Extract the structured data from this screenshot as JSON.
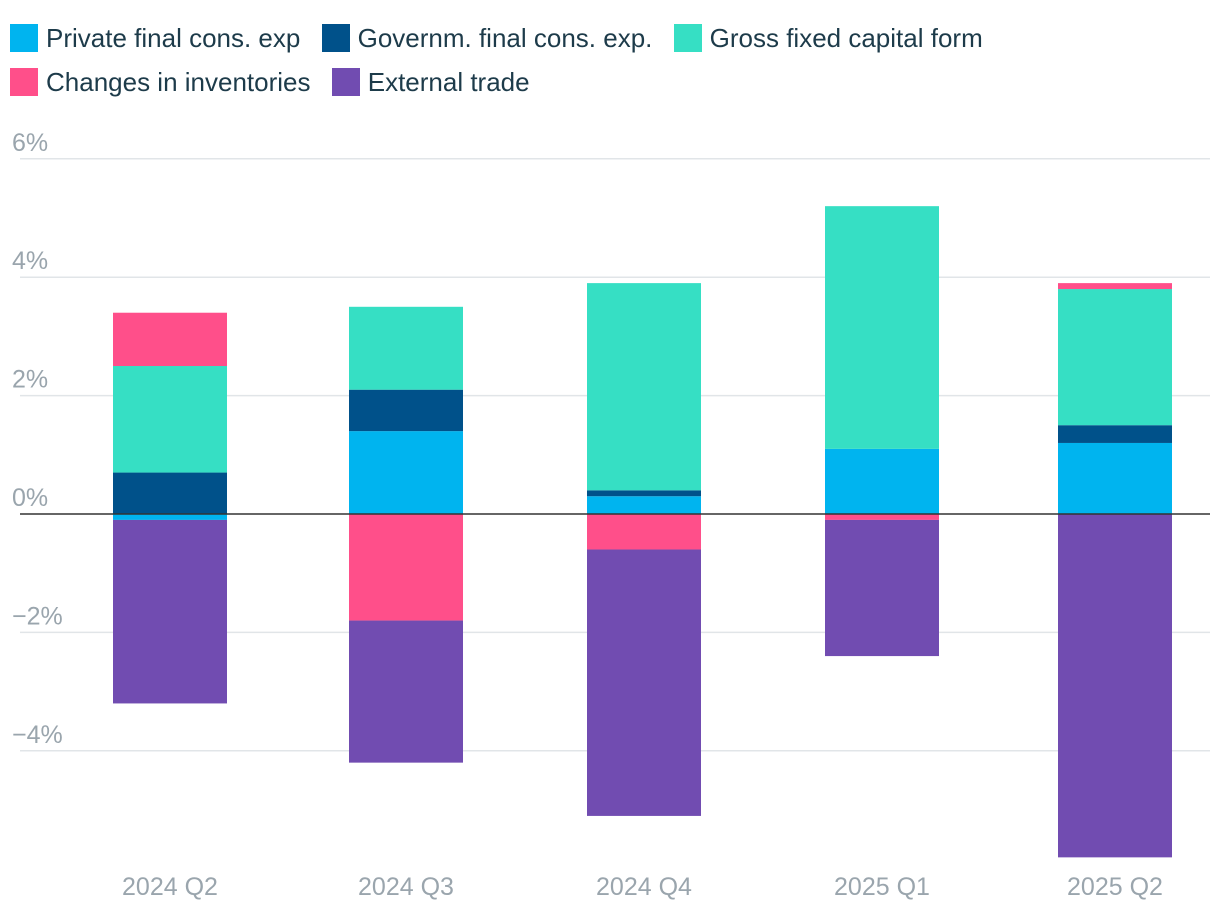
{
  "chart_data": {
    "type": "bar",
    "stacked": true,
    "categories": [
      "2024 Q2",
      "2024 Q3",
      "2024 Q4",
      "2025 Q1",
      "2025 Q2"
    ],
    "series": [
      {
        "name": "Private final cons. exp",
        "color": "#00b4ef",
        "values": [
          -0.1,
          1.4,
          0.3,
          1.1,
          1.2
        ]
      },
      {
        "name": "Governm. final cons. exp.",
        "color": "#00518a",
        "values": [
          0.7,
          0.7,
          0.1,
          0.0,
          0.3
        ]
      },
      {
        "name": "Gross fixed capital form",
        "color": "#36dfc4",
        "values": [
          1.8,
          1.4,
          3.5,
          4.1,
          2.3
        ]
      },
      {
        "name": "Changes in inventories",
        "color": "#ff4f8a",
        "values": [
          0.9,
          -1.8,
          -0.6,
          -0.1,
          0.1
        ]
      },
      {
        "name": "External trade",
        "color": "#714cb1",
        "values": [
          -3.1,
          -2.4,
          -4.5,
          -2.3,
          -5.8
        ]
      }
    ],
    "yticks": [
      6,
      4,
      2,
      0,
      -2,
      -4
    ],
    "ytick_labels": [
      "6%",
      "4%",
      "2%",
      "0%",
      "−2%",
      "−4%"
    ],
    "ylim": [
      -5.8,
      6
    ],
    "grid": true,
    "legend_position": "top-left"
  }
}
